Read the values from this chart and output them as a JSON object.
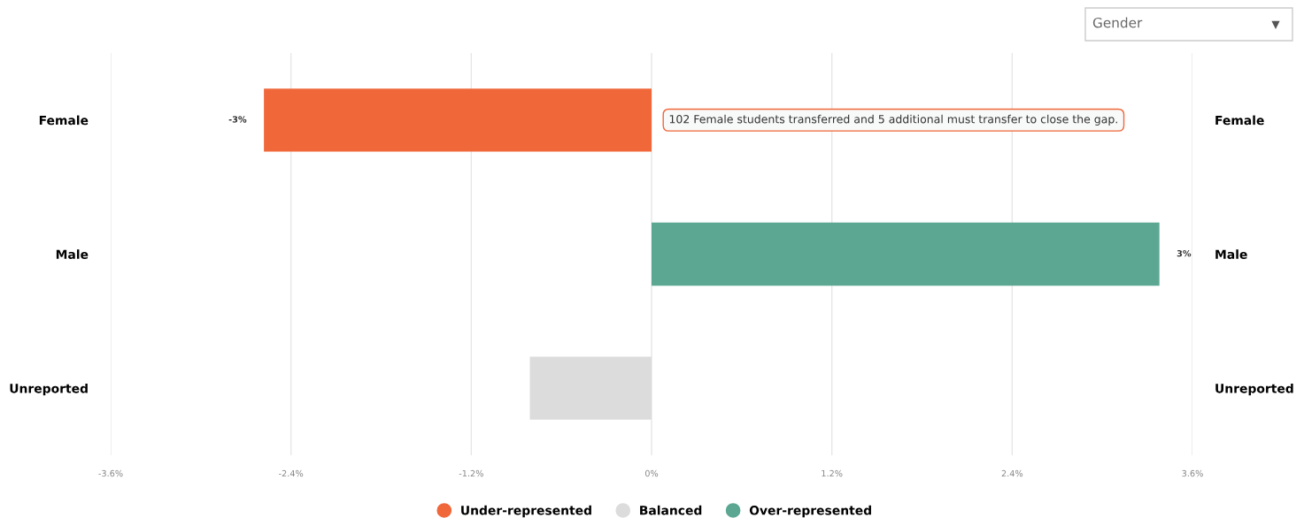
{
  "chart_data": {
    "type": "bar",
    "orientation": "horizontal",
    "categories": [
      "Female",
      "Male",
      "Unreported"
    ],
    "series": [
      {
        "name": "Under-represented",
        "color": "#f0673a",
        "values": [
          -2.58,
          null,
          null
        ],
        "value_labels": [
          "-3%",
          null,
          null
        ]
      },
      {
        "name": "Balanced",
        "color": "#dcdcdc",
        "values": [
          null,
          null,
          -0.81
        ],
        "value_labels": [
          null,
          null,
          null
        ]
      },
      {
        "name": "Over-represented",
        "color": "#5ba792",
        "values": [
          null,
          3.38,
          null
        ],
        "value_labels": [
          null,
          "3%",
          null
        ]
      }
    ],
    "xlim": [
      -3.6,
      3.6
    ],
    "xticks": [
      {
        "value": -3.6,
        "label": "-3.6%"
      },
      {
        "value": -2.4,
        "label": "-2.4%"
      },
      {
        "value": -1.2,
        "label": "-1.2%"
      },
      {
        "value": 0,
        "label": "0%"
      },
      {
        "value": 1.2,
        "label": "1.2%"
      },
      {
        "value": 2.4,
        "label": "2.4%"
      },
      {
        "value": 3.6,
        "label": "3.6%"
      }
    ],
    "grid": "x",
    "legend": "bottom",
    "annotations": [
      {
        "text": "102 Female students transferred and 5 additional must transfer to close the gap.",
        "x": 0,
        "y": "Female"
      },
      "Gender"
    ]
  }
}
